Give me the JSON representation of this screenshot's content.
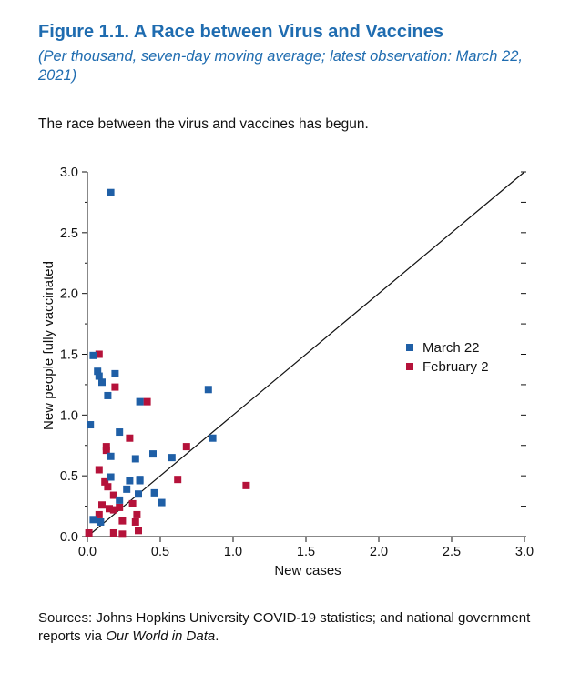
{
  "figure": {
    "title": "Figure 1.1.  A Race between Virus and Vaccines",
    "subtitle": "(Per thousand, seven-day moving average; latest observation: March 22, 2021)",
    "caption": "The race between the virus and vaccines has begun."
  },
  "sources": {
    "prefix": "Sources: Johns Hopkins University COVID-19 statistics; and national government reports via ",
    "italic": "Our World in Data",
    "suffix": "."
  },
  "colors": {
    "march": "#1f5fa6",
    "february": "#b5123a",
    "line": "#111111"
  },
  "chart_data": {
    "type": "scatter",
    "xlabel": "New cases",
    "ylabel": "New people fully vaccinated",
    "xlim": [
      0,
      3
    ],
    "ylim": [
      0,
      3
    ],
    "x_ticks": [
      "0.0",
      "0.5",
      "1.0",
      "1.5",
      "2.0",
      "2.5",
      "3.0"
    ],
    "y_ticks": [
      "0.0",
      "0.5",
      "1.0",
      "1.5",
      "2.0",
      "2.5",
      "3.0"
    ],
    "reference_line": "45-degree line",
    "legend_position": "right",
    "series": [
      {
        "name": "March 22",
        "color": "#1f5fa6",
        "points": [
          [
            0.16,
            2.83
          ],
          [
            0.04,
            1.49
          ],
          [
            0.07,
            1.36
          ],
          [
            0.08,
            1.32
          ],
          [
            0.1,
            1.27
          ],
          [
            0.19,
            1.34
          ],
          [
            0.14,
            1.16
          ],
          [
            0.36,
            1.11
          ],
          [
            0.83,
            1.21
          ],
          [
            0.02,
            0.92
          ],
          [
            0.22,
            0.86
          ],
          [
            0.86,
            0.81
          ],
          [
            0.45,
            0.68
          ],
          [
            0.16,
            0.66
          ],
          [
            0.33,
            0.64
          ],
          [
            0.58,
            0.65
          ],
          [
            0.16,
            0.49
          ],
          [
            0.29,
            0.46
          ],
          [
            0.36,
            0.46
          ],
          [
            0.36,
            0.47
          ],
          [
            0.27,
            0.39
          ],
          [
            0.35,
            0.35
          ],
          [
            0.46,
            0.36
          ],
          [
            0.22,
            0.3
          ],
          [
            0.51,
            0.28
          ],
          [
            0.04,
            0.14
          ],
          [
            0.09,
            0.12
          ]
        ]
      },
      {
        "name": "February 2",
        "color": "#b5123a",
        "points": [
          [
            0.08,
            1.5
          ],
          [
            0.41,
            1.11
          ],
          [
            0.19,
            1.23
          ],
          [
            0.29,
            0.81
          ],
          [
            0.68,
            0.74
          ],
          [
            0.13,
            0.74
          ],
          [
            0.13,
            0.71
          ],
          [
            0.08,
            0.55
          ],
          [
            0.12,
            0.45
          ],
          [
            0.14,
            0.41
          ],
          [
            0.62,
            0.47
          ],
          [
            1.09,
            0.42
          ],
          [
            0.18,
            0.34
          ],
          [
            0.31,
            0.27
          ],
          [
            0.1,
            0.26
          ],
          [
            0.15,
            0.23
          ],
          [
            0.18,
            0.22
          ],
          [
            0.22,
            0.24
          ],
          [
            0.08,
            0.18
          ],
          [
            0.34,
            0.18
          ],
          [
            0.24,
            0.13
          ],
          [
            0.33,
            0.12
          ],
          [
            0.01,
            0.03
          ],
          [
            0.18,
            0.03
          ],
          [
            0.24,
            0.02
          ],
          [
            0.35,
            0.05
          ]
        ]
      }
    ]
  }
}
